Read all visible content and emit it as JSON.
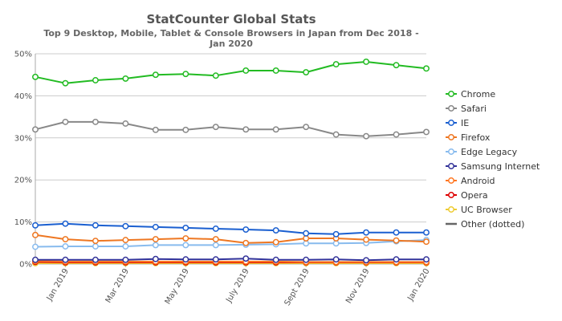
{
  "chart_data": {
    "type": "line",
    "title": "StatCounter Global Stats",
    "subtitle_line1": "Top 9 Desktop, Mobile, Tablet & Console Browsers in Japan from Dec 2018 -",
    "subtitle_line2": "Jan 2020",
    "ylim": [
      0,
      50
    ],
    "y_ticks": [
      "0%",
      "10%",
      "20%",
      "30%",
      "40%",
      "50%"
    ],
    "x_points": [
      "Dec 2018",
      "Jan 2019",
      "Feb 2019",
      "Mar 2019",
      "Apr 2019",
      "May 2019",
      "Jun 2019",
      "Jul 2019",
      "Aug 2019",
      "Sept 2019",
      "Oct 2019",
      "Nov 2019",
      "Dec 2019",
      "Jan 2020"
    ],
    "x_tick_labels": [
      {
        "index": 1,
        "label": "Jan 2019"
      },
      {
        "index": 3,
        "label": "Mar 2019"
      },
      {
        "index": 5,
        "label": "May 2019"
      },
      {
        "index": 7,
        "label": "July 2019"
      },
      {
        "index": 9,
        "label": "Sept 2019"
      },
      {
        "index": 11,
        "label": "Nov 2019"
      },
      {
        "index": 13,
        "label": "Jan 2020"
      }
    ],
    "grid": true,
    "legend_position": "right",
    "series": [
      {
        "name": "Chrome",
        "color": "#22bb22",
        "values": [
          44.5,
          43.0,
          43.7,
          44.1,
          45.0,
          45.2,
          44.8,
          46.0,
          46.0,
          45.6,
          47.5,
          48.1,
          47.3,
          46.5
        ]
      },
      {
        "name": "Safari",
        "color": "#888888",
        "values": [
          32.0,
          33.8,
          33.8,
          33.4,
          31.9,
          31.9,
          32.6,
          32.0,
          32.0,
          32.6,
          30.8,
          30.4,
          30.8,
          31.4
        ]
      },
      {
        "name": "IE",
        "color": "#1a5fd0",
        "values": [
          9.2,
          9.6,
          9.2,
          9.0,
          8.8,
          8.6,
          8.4,
          8.2,
          8.0,
          7.3,
          7.1,
          7.5,
          7.5,
          7.5
        ]
      },
      {
        "name": "Firefox",
        "color": "#ee7722",
        "values": [
          6.9,
          5.9,
          5.5,
          5.7,
          5.9,
          6.1,
          5.9,
          5.0,
          5.2,
          6.1,
          6.1,
          5.8,
          5.6,
          5.3
        ]
      },
      {
        "name": "Edge Legacy",
        "color": "#88bbee",
        "values": [
          4.1,
          4.2,
          4.2,
          4.2,
          4.5,
          4.5,
          4.5,
          4.6,
          4.7,
          4.9,
          4.9,
          5.0,
          5.4,
          5.7
        ]
      },
      {
        "name": "Samsung Internet",
        "color": "#333399",
        "values": [
          1.0,
          1.0,
          1.0,
          1.0,
          1.2,
          1.1,
          1.1,
          1.3,
          1.0,
          1.0,
          1.1,
          0.9,
          1.1,
          1.1
        ]
      },
      {
        "name": "Android",
        "color": "#ff7722",
        "values": [
          0.7,
          0.6,
          0.6,
          0.6,
          0.6,
          0.6,
          0.6,
          0.6,
          0.6,
          0.5,
          0.5,
          0.5,
          0.5,
          0.5
        ]
      },
      {
        "name": "Opera",
        "color": "#dd0000",
        "values": [
          0.5,
          0.4,
          0.4,
          0.4,
          0.4,
          0.4,
          0.4,
          0.4,
          0.4,
          0.4,
          0.4,
          0.4,
          0.4,
          0.4
        ]
      },
      {
        "name": "UC Browser",
        "color": "#eecc33",
        "values": [
          0.2,
          0.2,
          0.2,
          0.2,
          0.2,
          0.2,
          0.2,
          0.2,
          0.2,
          0.2,
          0.2,
          0.2,
          0.2,
          0.2
        ]
      }
    ],
    "other_legend": {
      "name": "Other (dotted)",
      "color": "#666666"
    }
  }
}
